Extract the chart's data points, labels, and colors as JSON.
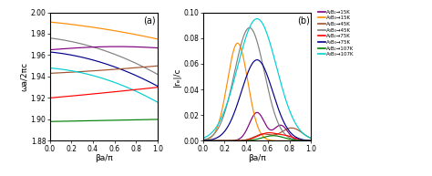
{
  "title_a": "(a)",
  "title_b": "(b)",
  "xlabel": "βa/π",
  "ylabel_a": "ωa/2πc",
  "ylabel_b": "|rₑ|/c",
  "xlim": [
    0,
    1.0
  ],
  "ylim_a": [
    1.88,
    2.0
  ],
  "ylim_b": [
    0.0,
    0.1
  ],
  "yticks_a": [
    1.88,
    1.9,
    1.92,
    1.94,
    1.96,
    1.98,
    2.0
  ],
  "yticks_b": [
    0.0,
    0.02,
    0.04,
    0.06,
    0.08,
    0.1
  ],
  "xticks": [
    0.0,
    0.2,
    0.4,
    0.6,
    0.8,
    1.0
  ],
  "legend_entries": [
    {
      "label": "A₂B₂→15K",
      "color": "#800080"
    },
    {
      "label": "A₃B₃→15K",
      "color": "#FF8C00"
    },
    {
      "label": "A₂B₂→45K",
      "color": "#A0522D"
    },
    {
      "label": "A₃B₃→45K",
      "color": "#808080"
    },
    {
      "label": "A₂B₂→75K",
      "color": "#FF0000"
    },
    {
      "label": "A₃B₃→75K",
      "color": "#00008B"
    },
    {
      "label": "A₂B₂→107K",
      "color": "#008000"
    },
    {
      "label": "A₃B₃→107K",
      "color": "#00CED1"
    }
  ],
  "panel_a_colors": [
    "#FF8C00",
    "#808080",
    "#800080",
    "#00008B",
    "#A0522D",
    "#00CED1",
    "#FF0000",
    "#008000"
  ],
  "panel_b_colors": [
    "#800080",
    "#FF8C00",
    "#A0522D",
    "#808080",
    "#FF0000",
    "#00008B",
    "#008000",
    "#00CED1"
  ]
}
